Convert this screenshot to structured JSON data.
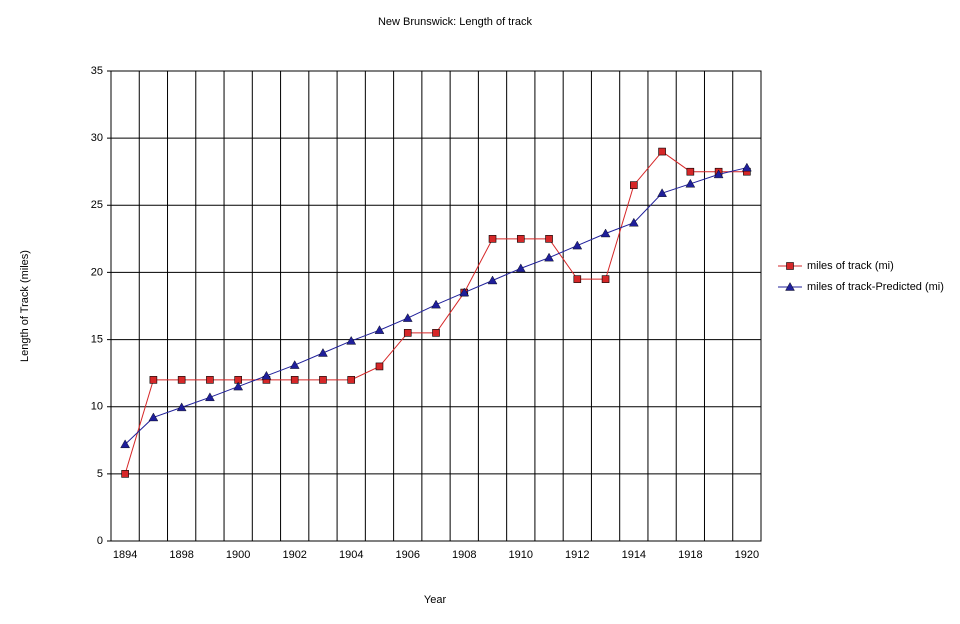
{
  "chart_data": {
    "type": "line",
    "title": "New Brunswick: Length of track",
    "x_label": "Year",
    "y_label": "Length  of Track (miles)",
    "categories": [
      "1894",
      null,
      "1898",
      null,
      "1900",
      null,
      "1902",
      null,
      "1904",
      null,
      "1906",
      null,
      "1908",
      null,
      "1910",
      null,
      "1912",
      null,
      "1914",
      null,
      "1918",
      null,
      "1920"
    ],
    "series": [
      {
        "name": "miles of track (mi)",
        "color": "#d62728",
        "marker": "square",
        "values": [
          5,
          12,
          12,
          12,
          12,
          12,
          12,
          12,
          12,
          13,
          15.5,
          15.5,
          18.5,
          22.5,
          22.5,
          22.5,
          19.5,
          19.5,
          26.5,
          29,
          27.5,
          27.5,
          27.5
        ]
      },
      {
        "name": "miles of track-Predicted (mi)",
        "color": "#1f1f9a",
        "marker": "triangle",
        "values": [
          7.2,
          9.2,
          9.95,
          10.7,
          11.5,
          12.3,
          13.1,
          14.0,
          14.9,
          15.7,
          16.6,
          17.6,
          18.5,
          19.4,
          20.3,
          21.1,
          22.0,
          22.9,
          23.7,
          25.9,
          26.6,
          27.3,
          27.8
        ]
      }
    ],
    "ylim": [
      0,
      35
    ],
    "yticks": [
      0,
      5,
      10,
      15,
      20,
      25,
      30,
      35
    ],
    "grid": true,
    "legend": "right"
  }
}
